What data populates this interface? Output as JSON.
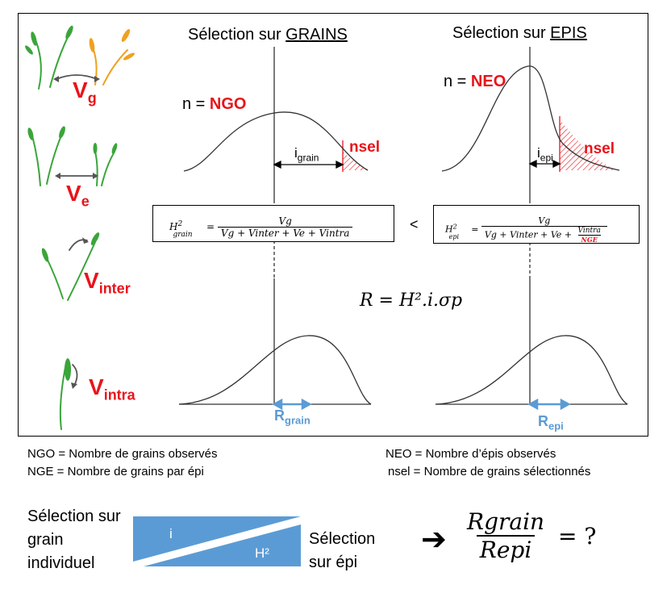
{
  "headers": {
    "grains_prefix": "Sélection sur ",
    "grains_underlined": "GRAINS",
    "epis_prefix": "Sélection sur ",
    "epis_underlined": "EPIS"
  },
  "variances": {
    "vg": {
      "main": "V",
      "sub": "g"
    },
    "ve": {
      "main": "V",
      "sub": "e"
    },
    "vinter": {
      "main": "V",
      "sub": "inter"
    },
    "vintra": {
      "main": "V",
      "sub": "intra"
    }
  },
  "grain_panel": {
    "n_prefix": "n = ",
    "n_value": "NGO",
    "i_main": "i",
    "i_sub": "grain",
    "nsel": "nsel",
    "r_main": "R",
    "r_sub": "grain"
  },
  "epi_panel": {
    "n_prefix": "n = ",
    "n_value": "NEO",
    "i_main": "i",
    "i_sub": "epi",
    "nsel": "nsel",
    "r_main": "R",
    "r_sub": "epi"
  },
  "formulas": {
    "h_grain_lhs_main": "H",
    "h_grain_lhs_sup": "2",
    "h_grain_lhs_sub": "grain",
    "h_grain_num": "Vg",
    "h_grain_den": "Vg + Vinter + Ve + Vintra",
    "comparator": "<",
    "h_epi_lhs_main": "H",
    "h_epi_lhs_sup": "2",
    "h_epi_lhs_sub": "epi",
    "h_epi_num": "Vg",
    "h_epi_den": "Vg + Vinter + Ve +",
    "h_epi_den_frac_num": "Vintra",
    "h_epi_den_frac_den": "NGE",
    "response": "R =  H².i.σp"
  },
  "legend": {
    "ngo": "NGO = Nombre de grains observés",
    "nge": "NGE = Nombre de grains par épi",
    "neo": "NEO = Nombre d’épis observés",
    "nsel": "nsel = Nombre de grains sélectionnés"
  },
  "bottom": {
    "left_line1": "Sélection sur",
    "left_line2": "grain",
    "left_line3": "individuel",
    "tri_i": "i",
    "tri_h2": "H²",
    "right_line1": "Sélection",
    "right_line2": "sur épi",
    "arrow": "➔",
    "ratio_num": "Rgrain",
    "ratio_den": "Repi",
    "ratio_tail": "= ?"
  },
  "colors": {
    "red": "#e8141a",
    "blue": "#5b9bd5",
    "plant_green": "#3aa53a",
    "plant_orange": "#f0a020"
  }
}
